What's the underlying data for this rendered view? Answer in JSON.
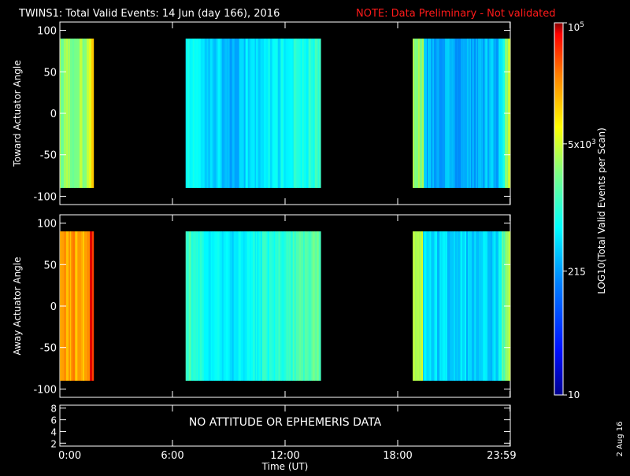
{
  "header": {
    "title": "TWINS1: Total Valid Events: 14 Jun (day 166), 2016",
    "note": "NOTE: Data Preliminary - Not validated",
    "note_color": "#ff1a1a"
  },
  "side_date": "2 Aug 16",
  "chart_data": [
    {
      "type": "heatmap",
      "panel": "toward",
      "ylabel": "Toward Actuator Angle",
      "xlim": [
        0,
        24
      ],
      "ylim": [
        -110,
        110
      ],
      "yticks": [
        -100,
        -50,
        0,
        50,
        100
      ],
      "data_ylim": [
        -90,
        90
      ],
      "blocks": [
        {
          "x": [
            0.0,
            1.8
          ],
          "level": 0.62
        },
        {
          "x": [
            6.7,
            13.9
          ],
          "level": 0.45
        },
        {
          "x": [
            18.8,
            23.99
          ],
          "level": 0.38
        }
      ]
    },
    {
      "type": "heatmap",
      "panel": "away",
      "ylabel": "Away Actuator Angle",
      "xlim": [
        0,
        24
      ],
      "ylim": [
        -110,
        110
      ],
      "yticks": [
        -100,
        -50,
        0,
        50,
        100
      ],
      "data_ylim": [
        -90,
        90
      ],
      "blocks": [
        {
          "x": [
            0.0,
            1.8
          ],
          "level": 0.82
        },
        {
          "x": [
            6.7,
            13.9
          ],
          "level": 0.5
        },
        {
          "x": [
            18.8,
            23.99
          ],
          "level": 0.42
        }
      ]
    },
    {
      "type": "line",
      "panel": "ephemeris",
      "yticks": [
        2,
        4,
        6,
        8
      ],
      "ylim": [
        1.5,
        8.5
      ],
      "message": "NO ATTITUDE OR EPHEMERIS DATA"
    }
  ],
  "x_axis": {
    "ticks": [
      {
        "value": 0,
        "label": "0:00"
      },
      {
        "value": 6,
        "label": "6:00"
      },
      {
        "value": 12,
        "label": "12:00"
      },
      {
        "value": 18,
        "label": "18:00"
      },
      {
        "value": 23.983,
        "label": "23:59"
      }
    ],
    "label": "Time (UT)"
  },
  "colorbar": {
    "label": "LOG10(Total Valid Events per Scan)",
    "ticks": [
      {
        "value": 10,
        "label": "10"
      },
      {
        "value": 215,
        "label": "215"
      },
      {
        "value": 5000,
        "label": "5x10^3"
      },
      {
        "value": 100000,
        "label": "10^5"
      }
    ],
    "range": [
      10,
      100000
    ],
    "colors": [
      "#00008f",
      "#0010ff",
      "#0080ff",
      "#00ffff",
      "#80ff80",
      "#ffff00",
      "#ff8000",
      "#ff0000",
      "#800000"
    ]
  }
}
